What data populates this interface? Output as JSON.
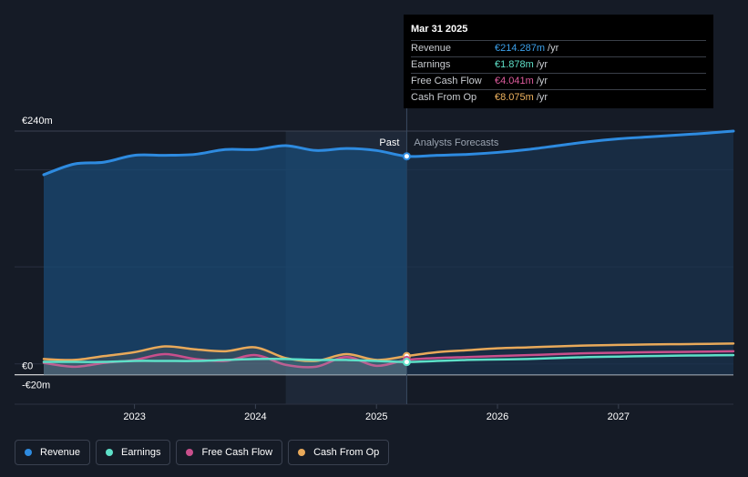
{
  "tooltip": {
    "date": "Mar 31 2025",
    "rows": [
      {
        "name": "Revenue",
        "value": "€214.287m",
        "unit": "/yr",
        "color": "#3b9fe8"
      },
      {
        "name": "Earnings",
        "value": "€1.878m",
        "unit": "/yr",
        "color": "#5ee0c8"
      },
      {
        "name": "Free Cash Flow",
        "value": "€4.041m",
        "unit": "/yr",
        "color": "#e05c9e"
      },
      {
        "name": "Cash From Op",
        "value": "€8.075m",
        "unit": "/yr",
        "color": "#f0b460"
      }
    ]
  },
  "legend": [
    {
      "label": "Revenue",
      "color": "#2e8be0"
    },
    {
      "label": "Earnings",
      "color": "#5ee0c8"
    },
    {
      "label": "Free Cash Flow",
      "color": "#c94f8c"
    },
    {
      "label": "Cash From Op",
      "color": "#e8a95a"
    }
  ],
  "chart_data": {
    "type": "line",
    "ylim": [
      -20,
      240
    ],
    "y_ticks_labels": [
      "€240m",
      "€0",
      "-€20m"
    ],
    "x_tick_labels": [
      "2023",
      "2024",
      "2025",
      "2026",
      "2027"
    ],
    "past_label": "Past",
    "forecast_label": "Analysts Forecasts",
    "divider_x": 2025.25,
    "series": [
      {
        "name": "Revenue",
        "color": "#2e8be0",
        "x": [
          2022.25,
          2022.5,
          2022.75,
          2023.0,
          2023.25,
          2023.5,
          2023.75,
          2024.0,
          2024.25,
          2024.5,
          2024.75,
          2025.0,
          2025.25,
          2025.5,
          2025.75,
          2026.0,
          2026.25,
          2026.5,
          2026.75,
          2027.0,
          2027.25,
          2027.5,
          2027.75,
          2027.95
        ],
        "values": [
          195,
          206,
          208,
          215,
          215,
          216,
          221,
          221,
          225,
          220,
          222,
          220,
          214,
          215,
          216,
          218,
          221,
          225,
          229,
          232,
          234,
          236,
          238,
          240
        ]
      },
      {
        "name": "Earnings",
        "color": "#5ee0c8",
        "x": [
          2022.25,
          2022.5,
          2022.75,
          2023.0,
          2023.25,
          2023.5,
          2023.75,
          2024.0,
          2024.25,
          2024.5,
          2024.75,
          2025.0,
          2025.25,
          2025.5,
          2025.75,
          2026.0,
          2026.25,
          2026.5,
          2026.75,
          2027.0,
          2027.25,
          2027.5,
          2027.75,
          2027.95
        ],
        "values": [
          2,
          2,
          2,
          3,
          3,
          3,
          4,
          5,
          5,
          4,
          4,
          3,
          1.9,
          3,
          4,
          4.5,
          5,
          6,
          7,
          7.5,
          8,
          8.5,
          8.8,
          9
        ]
      },
      {
        "name": "Free Cash Flow",
        "color": "#c94f8c",
        "x": [
          2022.25,
          2022.5,
          2022.75,
          2023.0,
          2023.25,
          2023.5,
          2023.75,
          2024.0,
          2024.25,
          2024.5,
          2024.75,
          2025.0,
          2025.25,
          2025.5,
          2025.75,
          2026.0,
          2026.25,
          2026.5,
          2026.75,
          2027.0,
          2027.25,
          2027.5,
          2027.75,
          2027.95
        ],
        "values": [
          1,
          -3,
          1,
          4,
          10,
          5,
          3,
          9,
          -1,
          -3,
          7,
          -2,
          4,
          6,
          7,
          8,
          9,
          10,
          11,
          11.5,
          12,
          12.3,
          12.6,
          13
        ]
      },
      {
        "name": "Cash From Op",
        "color": "#e8a95a",
        "x": [
          2022.25,
          2022.5,
          2022.75,
          2023.0,
          2023.25,
          2023.5,
          2023.75,
          2024.0,
          2024.25,
          2024.5,
          2024.75,
          2025.0,
          2025.25,
          2025.5,
          2025.75,
          2026.0,
          2026.25,
          2026.5,
          2026.75,
          2027.0,
          2027.25,
          2027.5,
          2027.75,
          2027.95
        ],
        "values": [
          5,
          4,
          8,
          12,
          18,
          15,
          13,
          17,
          6,
          3,
          10,
          4,
          8,
          12,
          14,
          16,
          17,
          18,
          19,
          19.5,
          20,
          20.3,
          20.6,
          21
        ]
      }
    ]
  }
}
